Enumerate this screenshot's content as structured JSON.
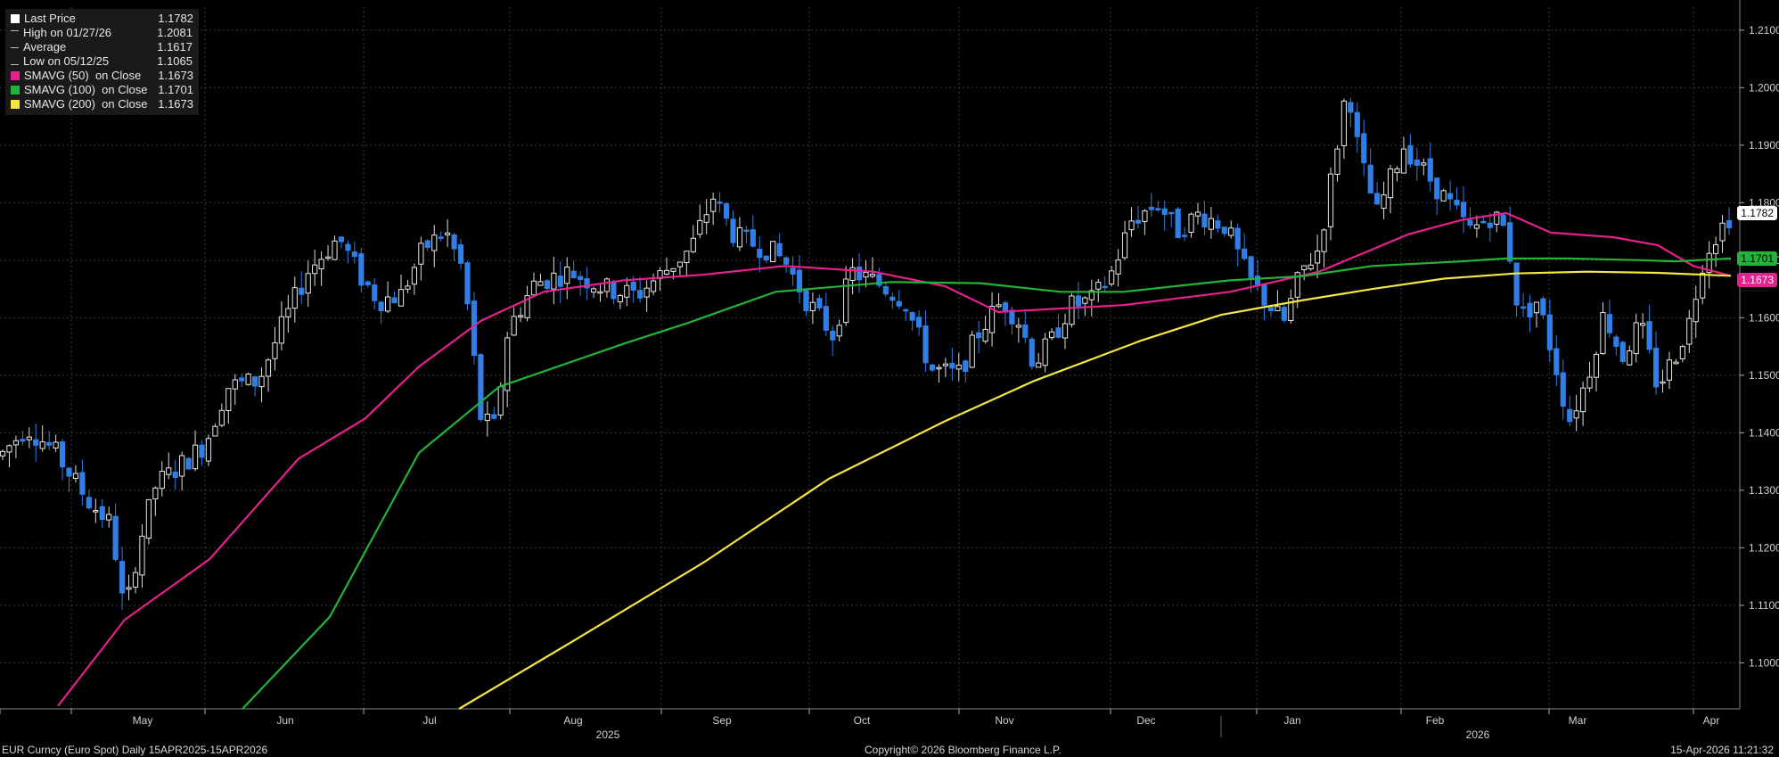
{
  "legend": [
    {
      "label": "Last Price",
      "value": "1.1782",
      "marker": "square",
      "color": "#ffffff"
    },
    {
      "label": "High on 01/27/26",
      "value": "1.2081",
      "marker": "high-glyph",
      "color": "#bbbbbb"
    },
    {
      "label": "Average",
      "value": "1.1617",
      "marker": "avg-glyph",
      "color": "#bbbbbb"
    },
    {
      "label": "Low on 05/12/25",
      "value": "1.1065",
      "marker": "low-glyph",
      "color": "#bbbbbb"
    },
    {
      "label": "SMAVG (50)  on Close",
      "value": "1.1673",
      "marker": "square",
      "color": "#e6208e"
    },
    {
      "label": "SMAVG (100)  on Close",
      "value": "1.1701",
      "marker": "square",
      "color": "#22b33a"
    },
    {
      "label": "SMAVG (200)  on Close",
      "value": "1.1673",
      "marker": "square",
      "color": "#f5e640"
    }
  ],
  "footer": {
    "left": "EUR Curncy (Euro Spot) Daily 15APR2025-15APR2026",
    "center": "Copyright© 2026 Bloomberg Finance L.P.",
    "right": "15-Apr-2026 11:21:32"
  },
  "price_tags": [
    {
      "name": "last-price-tag",
      "value": "1.1782",
      "bg": "#ffffff",
      "fg": "#000000",
      "y": 1.1782
    },
    {
      "name": "sma100-tag",
      "value": "1.1701",
      "bg": "#22b33a",
      "fg": "#000000",
      "y": 1.1703
    },
    {
      "name": "sma50-tag",
      "value": "1.1673",
      "bg": "#e6208e",
      "fg": "#ffffff",
      "y": 1.1665
    }
  ],
  "chart_data": {
    "type": "candlestick",
    "ylim": [
      1.092,
      1.214
    ],
    "yticks": [
      "1.1000",
      "1.1100",
      "1.1200",
      "1.1300",
      "1.1400",
      "1.1500",
      "1.1600",
      "1.1700",
      "1.1800",
      "1.1900",
      "1.2000",
      "1.2100"
    ],
    "month_ticks": [
      "May",
      "Jun",
      "Jul",
      "Aug",
      "Sep",
      "Oct",
      "Nov",
      "Dec",
      "Jan",
      "Feb",
      "Mar",
      "Apr"
    ],
    "year_labels": [
      "2025",
      "2026"
    ],
    "up_color": "#ffffff",
    "down_color": "#2f7fe6",
    "series": [
      {
        "name": "SMAVG (50)",
        "color": "#e6208e",
        "values": [
          1.088,
          1.1075,
          1.118,
          1.1355,
          1.1425,
          1.1515,
          1.1595,
          1.1645,
          1.1665,
          1.1675,
          1.169,
          1.168,
          1.1655,
          1.1605,
          1.1622,
          1.1645,
          1.168,
          1.1782,
          1.1748,
          1.1726,
          1.1673
        ]
      },
      {
        "name": "SMAVG (100)",
        "color": "#22b33a",
        "values": [
          null,
          null,
          null,
          null,
          1.092,
          1.108,
          1.1365,
          1.152,
          1.159,
          1.1652,
          1.1662,
          1.1645,
          1.1655,
          1.1665,
          1.1685,
          1.1703,
          1.1701,
          1.1701,
          1.1701
        ]
      },
      {
        "name": "SMAVG (200)",
        "color": "#f5e640",
        "values": [
          null,
          null,
          null,
          null,
          null,
          null,
          null,
          1.092,
          1.1035,
          1.1215,
          1.14,
          1.1522,
          1.161,
          1.1648,
          1.1675,
          1.168,
          1.1673
        ]
      }
    ]
  }
}
